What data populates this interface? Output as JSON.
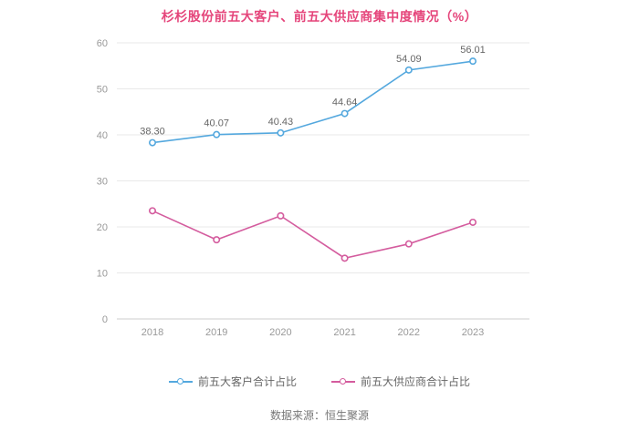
{
  "title": "杉杉股份前五大客户、前五大供应商集中度情况（%）",
  "source": "数据来源：恒生聚源",
  "colors": {
    "title": "#e5457b",
    "customer_line": "#54a8de",
    "supplier_line": "#d45c9e",
    "grid": "#e9e9e9",
    "axis": "#cccccc",
    "tick_text": "#999999",
    "value_label": "#666666"
  },
  "chart_data": {
    "type": "line",
    "categories": [
      "2018",
      "2019",
      "2020",
      "2021",
      "2022",
      "2023"
    ],
    "series": [
      {
        "name": "前五大客户合计占比",
        "values": [
          38.3,
          40.07,
          40.43,
          44.64,
          54.09,
          56.01
        ],
        "labels": [
          "38.30",
          "40.07",
          "40.43",
          "44.64",
          "54.09",
          "56.01"
        ],
        "color": "#54a8de"
      },
      {
        "name": "前五大供应商合计占比",
        "values": [
          23.5,
          17.2,
          22.4,
          13.2,
          16.3,
          21.0
        ],
        "color": "#d45c9e"
      }
    ],
    "ylim": [
      0,
      60
    ],
    "yticks": [
      0,
      10,
      20,
      30,
      40,
      50,
      60
    ],
    "grid": true,
    "legend_position": "bottom"
  }
}
